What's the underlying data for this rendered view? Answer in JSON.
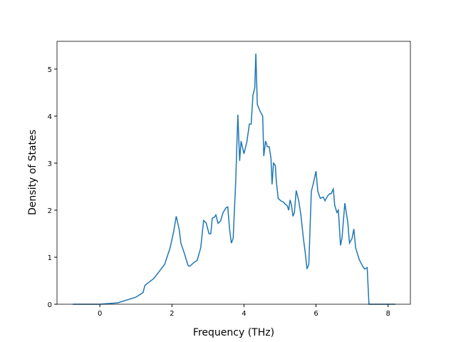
{
  "chart_data": {
    "type": "line",
    "xlabel": "Frequency (THz)",
    "ylabel": "Density of States",
    "x": [
      -0.75,
      0,
      0.5,
      1.0,
      1.2,
      1.25,
      1.5,
      1.8,
      1.95,
      2.05,
      2.12,
      2.2,
      2.25,
      2.35,
      2.45,
      2.5,
      2.6,
      2.7,
      2.8,
      2.88,
      2.95,
      3.03,
      3.08,
      3.12,
      3.18,
      3.22,
      3.28,
      3.35,
      3.42,
      3.5,
      3.55,
      3.6,
      3.65,
      3.7,
      3.77,
      3.83,
      3.88,
      3.92,
      4.0,
      4.08,
      4.15,
      4.2,
      4.25,
      4.3,
      4.33,
      4.37,
      4.45,
      4.52,
      4.55,
      4.6,
      4.65,
      4.7,
      4.75,
      4.78,
      4.82,
      4.87,
      4.9,
      4.95,
      5.02,
      5.1,
      5.15,
      5.2,
      5.24,
      5.28,
      5.32,
      5.36,
      5.4,
      5.45,
      5.52,
      5.58,
      5.65,
      5.7,
      5.75,
      5.8,
      5.87,
      5.92,
      6.0,
      6.05,
      6.12,
      6.2,
      6.25,
      6.32,
      6.38,
      6.42,
      6.48,
      6.52,
      6.58,
      6.62,
      6.68,
      6.72,
      6.8,
      6.88,
      6.93,
      7.0,
      7.05,
      7.1,
      7.2,
      7.3,
      7.35,
      7.42,
      7.47,
      8.2
    ],
    "series": [
      {
        "name": "Density of States",
        "color": "#1f77b4",
        "values": [
          0,
          0,
          0.03,
          0.15,
          0.25,
          0.4,
          0.55,
          0.85,
          1.2,
          1.55,
          1.87,
          1.6,
          1.3,
          1.07,
          0.82,
          0.81,
          0.88,
          0.93,
          1.2,
          1.78,
          1.73,
          1.5,
          1.5,
          1.83,
          1.85,
          1.9,
          1.72,
          1.77,
          1.95,
          2.05,
          2.07,
          1.6,
          1.3,
          1.4,
          2.6,
          4.03,
          3.05,
          3.47,
          3.2,
          3.45,
          3.83,
          3.83,
          4.45,
          4.6,
          5.33,
          4.25,
          4.1,
          4.0,
          3.15,
          3.47,
          3.35,
          3.35,
          3.1,
          2.55,
          3.0,
          2.95,
          2.6,
          2.25,
          2.2,
          2.17,
          2.12,
          2.1,
          2.0,
          2.22,
          2.1,
          1.87,
          1.95,
          2.42,
          2.2,
          1.9,
          1.4,
          1.1,
          0.75,
          0.85,
          2.4,
          2.55,
          2.83,
          2.4,
          2.25,
          2.28,
          2.2,
          2.3,
          2.35,
          2.35,
          2.45,
          2.1,
          1.95,
          2.0,
          1.25,
          1.4,
          2.15,
          1.75,
          1.3,
          1.4,
          1.6,
          1.2,
          0.95,
          0.8,
          0.75,
          0.78,
          0,
          0
        ]
      }
    ],
    "xlim": [
      -1.19,
      8.62
    ],
    "ylim": [
      0,
      5.59
    ],
    "xticks": [
      0,
      2,
      4,
      6,
      8
    ],
    "yticks": [
      0,
      1,
      2,
      3,
      4,
      5
    ]
  }
}
